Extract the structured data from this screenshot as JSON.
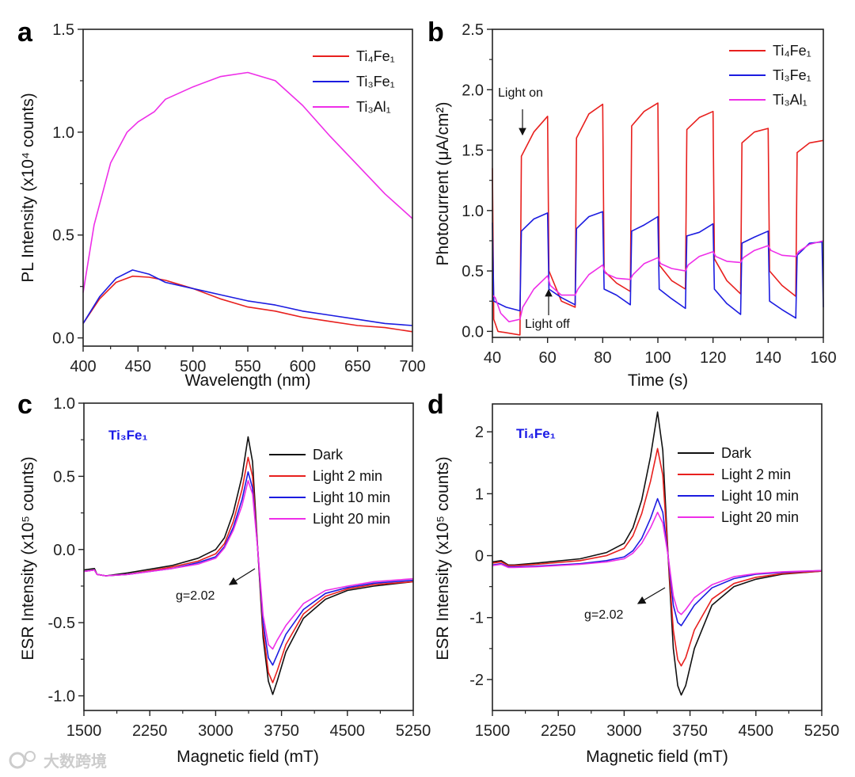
{
  "watermark": "大数跨境",
  "colors": {
    "red": "#e8201e",
    "blue": "#1c1ce0",
    "magenta": "#ee2ee8",
    "black": "#111111"
  },
  "chart_data": [
    {
      "panel": "a",
      "type": "line",
      "xlabel": "Wavelength (nm)",
      "ylabel": "PL Intensity (x10⁴ counts)",
      "xlim": [
        400,
        700
      ],
      "ylim": [
        -0.04,
        1.5
      ],
      "xticks": [
        400,
        450,
        500,
        550,
        600,
        650,
        700
      ],
      "xticklabels": [
        "400",
        "450",
        "500",
        "550",
        "600",
        "650",
        "700"
      ],
      "yticks": [
        0,
        0.5,
        1.0,
        1.5
      ],
      "yticklabels": [
        "0.0",
        "0.5",
        "1.0",
        "1.5"
      ],
      "legend_position": "top-right",
      "series": [
        {
          "name": "Ti₄Fe₁",
          "color": "red",
          "x": [
            400,
            415,
            430,
            445,
            460,
            475,
            500,
            525,
            550,
            575,
            600,
            625,
            650,
            675,
            700
          ],
          "y": [
            0.07,
            0.19,
            0.27,
            0.3,
            0.295,
            0.28,
            0.24,
            0.19,
            0.15,
            0.13,
            0.1,
            0.08,
            0.06,
            0.05,
            0.03
          ]
        },
        {
          "name": "Ti₃Fe₁",
          "color": "blue",
          "x": [
            400,
            415,
            430,
            445,
            460,
            475,
            500,
            525,
            550,
            575,
            600,
            625,
            650,
            675,
            700
          ],
          "y": [
            0.07,
            0.2,
            0.29,
            0.33,
            0.31,
            0.27,
            0.24,
            0.21,
            0.18,
            0.16,
            0.13,
            0.11,
            0.09,
            0.07,
            0.06
          ]
        },
        {
          "name": "Ti₃Al₁",
          "color": "magenta",
          "x": [
            400,
            410,
            425,
            440,
            450,
            465,
            475,
            500,
            525,
            550,
            575,
            600,
            625,
            650,
            675,
            700
          ],
          "y": [
            0.22,
            0.55,
            0.85,
            1.0,
            1.05,
            1.1,
            1.16,
            1.22,
            1.27,
            1.29,
            1.25,
            1.13,
            0.98,
            0.84,
            0.7,
            0.58
          ]
        }
      ]
    },
    {
      "panel": "b",
      "type": "line",
      "xlabel": "Time (s)",
      "ylabel": "Photocurrent (μA/cm²)",
      "xlim": [
        40,
        160
      ],
      "ylim": [
        -0.05,
        2.5
      ],
      "xticks": [
        40,
        60,
        80,
        100,
        120,
        140,
        160
      ],
      "xticklabels": [
        "40",
        "60",
        "80",
        "100",
        "120",
        "140",
        "160"
      ],
      "yticks": [
        0,
        0.5,
        1.0,
        1.5,
        2.0,
        2.5
      ],
      "yticklabels": [
        "0.0",
        "0.5",
        "1.0",
        "1.5",
        "2.0",
        "2.5"
      ],
      "legend_position": "top-right",
      "annotations": [
        "Light on",
        "Light off"
      ],
      "series": [
        {
          "name": "Ti₄Fe₁",
          "color": "red",
          "x": [
            40,
            40.5,
            42,
            50,
            50.5,
            55,
            60,
            60.5,
            65,
            70,
            70.5,
            75,
            80,
            80.5,
            85,
            90,
            90.5,
            95,
            100,
            100.5,
            105,
            110,
            110.5,
            115,
            120,
            120.5,
            125,
            130,
            130.5,
            135,
            140,
            140.5,
            145,
            150,
            150.5,
            155,
            160
          ],
          "y": [
            1.35,
            0.1,
            0.0,
            -0.03,
            1.45,
            1.65,
            1.78,
            0.5,
            0.25,
            0.2,
            1.6,
            1.8,
            1.88,
            0.5,
            0.4,
            0.33,
            1.7,
            1.82,
            1.89,
            0.55,
            0.42,
            0.35,
            1.67,
            1.77,
            1.82,
            0.6,
            0.42,
            0.31,
            1.56,
            1.65,
            1.68,
            0.5,
            0.38,
            0.29,
            1.48,
            1.56,
            1.58
          ]
        },
        {
          "name": "Ti₃Fe₁",
          "color": "blue",
          "x": [
            40,
            40.5,
            45,
            50,
            50.5,
            55,
            60,
            60.5,
            65,
            70,
            70.5,
            75,
            80,
            80.5,
            85,
            90,
            90.5,
            95,
            100,
            100.5,
            105,
            110,
            110.5,
            115,
            120,
            120.5,
            125,
            130,
            130.5,
            135,
            140,
            140.5,
            145,
            150,
            150.5,
            155,
            159.5,
            160
          ],
          "y": [
            0.9,
            0.25,
            0.2,
            0.17,
            0.83,
            0.93,
            0.98,
            0.35,
            0.28,
            0.22,
            0.85,
            0.95,
            0.99,
            0.35,
            0.3,
            0.22,
            0.83,
            0.88,
            0.95,
            0.35,
            0.27,
            0.19,
            0.79,
            0.82,
            0.89,
            0.35,
            0.23,
            0.14,
            0.73,
            0.78,
            0.83,
            0.25,
            0.18,
            0.11,
            0.63,
            0.73,
            0.74,
            0.2
          ]
        },
        {
          "name": "Ti₃Al₁",
          "color": "magenta",
          "x": [
            40,
            41,
            43,
            46,
            50,
            51,
            55,
            60,
            61,
            65,
            70,
            71,
            75,
            80,
            81,
            85,
            90,
            91,
            95,
            100,
            101,
            105,
            110,
            111,
            115,
            120,
            121,
            125,
            130,
            131,
            135,
            140,
            141,
            145,
            150,
            151,
            155,
            160
          ],
          "y": [
            0.3,
            0.28,
            0.15,
            0.08,
            0.1,
            0.2,
            0.35,
            0.46,
            0.38,
            0.3,
            0.3,
            0.35,
            0.47,
            0.55,
            0.48,
            0.44,
            0.43,
            0.47,
            0.56,
            0.61,
            0.56,
            0.52,
            0.5,
            0.55,
            0.62,
            0.66,
            0.62,
            0.58,
            0.57,
            0.61,
            0.67,
            0.71,
            0.67,
            0.63,
            0.62,
            0.66,
            0.72,
            0.75
          ]
        }
      ]
    },
    {
      "panel": "c",
      "type": "line",
      "sample": "Ti₃Fe₁",
      "annotation": "g=2.02",
      "xlabel": "Magnetic field (mT)",
      "ylabel": "ESR Intensity (x10⁵ counts)",
      "xlim": [
        1500,
        5250
      ],
      "ylim": [
        -1.1,
        1.0
      ],
      "xticks": [
        1500,
        2250,
        3000,
        3750,
        4500,
        5250
      ],
      "xticklabels": [
        "1500",
        "2250",
        "3000",
        "3750",
        "4500",
        "5250"
      ],
      "yticks": [
        -1.0,
        -0.5,
        0,
        0.5,
        1.0
      ],
      "yticklabels": [
        "-1.0",
        "-0.5",
        "0.0",
        "0.5",
        "1.0"
      ],
      "legend_position": "top-right",
      "series": [
        {
          "name": "Dark",
          "color": "black",
          "x": [
            1500,
            1620,
            1650,
            1750,
            2000,
            2500,
            2800,
            3000,
            3100,
            3200,
            3300,
            3370,
            3420,
            3480,
            3540,
            3600,
            3650,
            3700,
            3800,
            4000,
            4250,
            4500,
            4800,
            5250
          ],
          "y": [
            -0.14,
            -0.13,
            -0.17,
            -0.18,
            -0.16,
            -0.11,
            -0.06,
            0.0,
            0.08,
            0.25,
            0.5,
            0.77,
            0.6,
            0.0,
            -0.6,
            -0.9,
            -0.99,
            -0.9,
            -0.7,
            -0.47,
            -0.34,
            -0.28,
            -0.25,
            -0.22
          ]
        },
        {
          "name": "Light 2 min",
          "color": "red",
          "x": [
            1500,
            1620,
            1650,
            1750,
            2000,
            2500,
            2800,
            3000,
            3100,
            3200,
            3300,
            3370,
            3420,
            3480,
            3540,
            3600,
            3650,
            3700,
            3800,
            4000,
            4250,
            4500,
            4800,
            5250
          ],
          "y": [
            -0.15,
            -0.14,
            -0.17,
            -0.18,
            -0.17,
            -0.12,
            -0.08,
            -0.03,
            0.04,
            0.19,
            0.41,
            0.63,
            0.5,
            0.0,
            -0.55,
            -0.84,
            -0.91,
            -0.83,
            -0.65,
            -0.44,
            -0.32,
            -0.27,
            -0.24,
            -0.22
          ]
        },
        {
          "name": "Light 10 min",
          "color": "blue",
          "x": [
            1500,
            1620,
            1650,
            1750,
            2000,
            2500,
            2800,
            3000,
            3100,
            3200,
            3300,
            3370,
            3420,
            3480,
            3540,
            3600,
            3650,
            3700,
            3800,
            4000,
            4250,
            4500,
            4800,
            5250
          ],
          "y": [
            -0.15,
            -0.14,
            -0.17,
            -0.18,
            -0.17,
            -0.13,
            -0.09,
            -0.05,
            0.02,
            0.15,
            0.34,
            0.53,
            0.42,
            0.0,
            -0.5,
            -0.74,
            -0.79,
            -0.72,
            -0.58,
            -0.41,
            -0.3,
            -0.26,
            -0.23,
            -0.21
          ]
        },
        {
          "name": "Light 20 min",
          "color": "magenta",
          "x": [
            1500,
            1620,
            1650,
            1750,
            2000,
            2500,
            2800,
            3000,
            3100,
            3200,
            3300,
            3370,
            3420,
            3480,
            3540,
            3600,
            3650,
            3700,
            3800,
            4000,
            4250,
            4500,
            4800,
            5250
          ],
          "y": [
            -0.15,
            -0.14,
            -0.17,
            -0.18,
            -0.17,
            -0.13,
            -0.1,
            -0.06,
            0.01,
            0.13,
            0.3,
            0.47,
            0.38,
            0.0,
            -0.45,
            -0.65,
            -0.68,
            -0.62,
            -0.52,
            -0.37,
            -0.28,
            -0.25,
            -0.22,
            -0.2
          ]
        }
      ]
    },
    {
      "panel": "d",
      "type": "line",
      "sample": "Ti₄Fe₁",
      "annotation": "g=2.02",
      "xlabel": "Magnetic field (mT)",
      "ylabel": "ESR Intensity (x10⁵ counts)",
      "xlim": [
        1500,
        5250
      ],
      "ylim": [
        -2.5,
        2.45
      ],
      "xticks": [
        1500,
        2250,
        3000,
        3750,
        4500,
        5250
      ],
      "xticklabels": [
        "1500",
        "2250",
        "3000",
        "3750",
        "4500",
        "5250"
      ],
      "yticks": [
        -2,
        -1,
        0,
        1,
        2
      ],
      "yticklabels": [
        "-2",
        "-1",
        "0",
        "1",
        "2"
      ],
      "legend_position": "top-right",
      "series": [
        {
          "name": "Dark",
          "color": "black",
          "x": [
            1500,
            1600,
            1680,
            1750,
            2000,
            2500,
            2800,
            3000,
            3100,
            3200,
            3300,
            3380,
            3440,
            3500,
            3560,
            3610,
            3650,
            3700,
            3800,
            4000,
            4250,
            4500,
            4800,
            5250
          ],
          "y": [
            -0.1,
            -0.08,
            -0.15,
            -0.15,
            -0.12,
            -0.05,
            0.05,
            0.2,
            0.45,
            0.9,
            1.6,
            2.32,
            1.7,
            0.0,
            -1.5,
            -2.1,
            -2.25,
            -2.1,
            -1.5,
            -0.8,
            -0.5,
            -0.38,
            -0.3,
            -0.25
          ]
        },
        {
          "name": "Light 2 min",
          "color": "red",
          "x": [
            1500,
            1600,
            1680,
            1750,
            2000,
            2500,
            2800,
            3000,
            3100,
            3200,
            3300,
            3380,
            3440,
            3500,
            3560,
            3610,
            3650,
            3700,
            3800,
            4000,
            4250,
            4500,
            4800,
            5250
          ],
          "y": [
            -0.12,
            -0.1,
            -0.16,
            -0.16,
            -0.14,
            -0.08,
            0.0,
            0.12,
            0.32,
            0.68,
            1.2,
            1.73,
            1.3,
            0.0,
            -1.2,
            -1.68,
            -1.78,
            -1.65,
            -1.2,
            -0.7,
            -0.45,
            -0.35,
            -0.29,
            -0.25
          ]
        },
        {
          "name": "Light 10 min",
          "color": "blue",
          "x": [
            1500,
            1600,
            1680,
            1750,
            2000,
            2500,
            2800,
            3000,
            3100,
            3200,
            3300,
            3380,
            3440,
            3500,
            3560,
            3610,
            3650,
            3700,
            3800,
            4000,
            4250,
            4500,
            4800,
            5250
          ],
          "y": [
            -0.15,
            -0.13,
            -0.18,
            -0.18,
            -0.17,
            -0.13,
            -0.08,
            -0.02,
            0.08,
            0.28,
            0.6,
            0.92,
            0.7,
            0.0,
            -0.8,
            -1.08,
            -1.13,
            -1.02,
            -0.8,
            -0.52,
            -0.37,
            -0.3,
            -0.27,
            -0.24
          ]
        },
        {
          "name": "Light 20 min",
          "color": "magenta",
          "x": [
            1500,
            1600,
            1680,
            1750,
            2000,
            2500,
            2800,
            3000,
            3100,
            3200,
            3300,
            3380,
            3440,
            3500,
            3560,
            3610,
            3650,
            3700,
            3800,
            4000,
            4250,
            4500,
            4800,
            5250
          ],
          "y": [
            -0.16,
            -0.14,
            -0.19,
            -0.19,
            -0.18,
            -0.14,
            -0.1,
            -0.05,
            0.04,
            0.2,
            0.45,
            0.7,
            0.53,
            0.0,
            -0.65,
            -0.9,
            -0.95,
            -0.87,
            -0.68,
            -0.47,
            -0.34,
            -0.29,
            -0.26,
            -0.24
          ]
        }
      ]
    }
  ]
}
